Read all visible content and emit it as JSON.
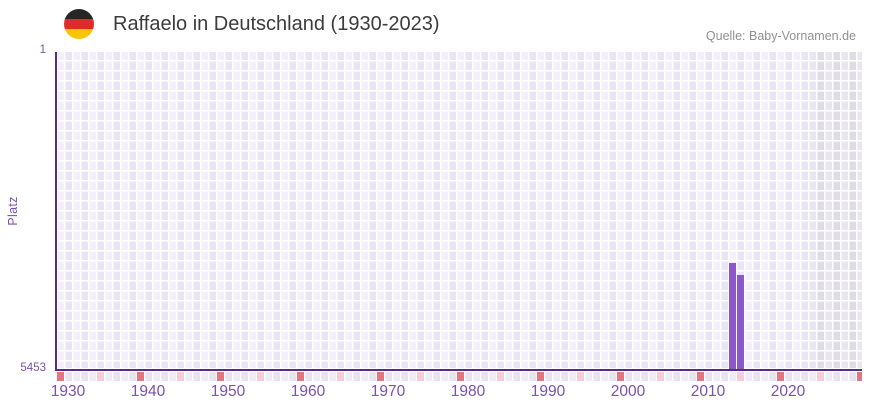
{
  "header": {
    "title": "Raffaelo in Deutschland (1930-2023)",
    "source": "Quelle: Baby-Vornamen.de",
    "flag_icon": "germany-flag"
  },
  "chart_data": {
    "type": "bar",
    "title": "Raffaelo in Deutschland (1930-2023)",
    "xlabel": "",
    "ylabel": "Platz",
    "y_axis_inverted": true,
    "ylim_top": 1,
    "ylim_bottom": 5453,
    "y_tick_top": "1",
    "y_tick_bottom": "5453",
    "x_domain": [
      1929,
      2029
    ],
    "x_ticks": [
      1930,
      1940,
      1950,
      1960,
      1970,
      1980,
      1990,
      2000,
      2010,
      2020
    ],
    "series": [
      {
        "name": "Platz",
        "points": [
          {
            "year": 2013,
            "rank": 3620
          },
          {
            "year": 2014,
            "rank": 3816
          }
        ]
      }
    ],
    "axis_marker_years_red": [
      1929,
      1939,
      1949,
      1959,
      1969,
      1979,
      1989,
      1999,
      2009,
      2019,
      2029
    ],
    "axis_marker_years_pink": [
      1934,
      1944,
      1954,
      1964,
      1974,
      1984,
      1994,
      2004,
      2014,
      2024
    ],
    "future_shaded_from_year": 2023,
    "grid": true,
    "legend": "none",
    "colors": {
      "bar": "#8c57c9",
      "axis": "#562c87",
      "grid_light": "#f3f0fa",
      "grid_dark": "#e9e5f4",
      "future_light": "#e8e6ef",
      "future_dark": "#dfdce8",
      "tick_red": "#e17680",
      "tick_pink": "#f3ced8",
      "label": "#7b51ad",
      "title": "#3c3c3c",
      "source": "#909090"
    }
  }
}
